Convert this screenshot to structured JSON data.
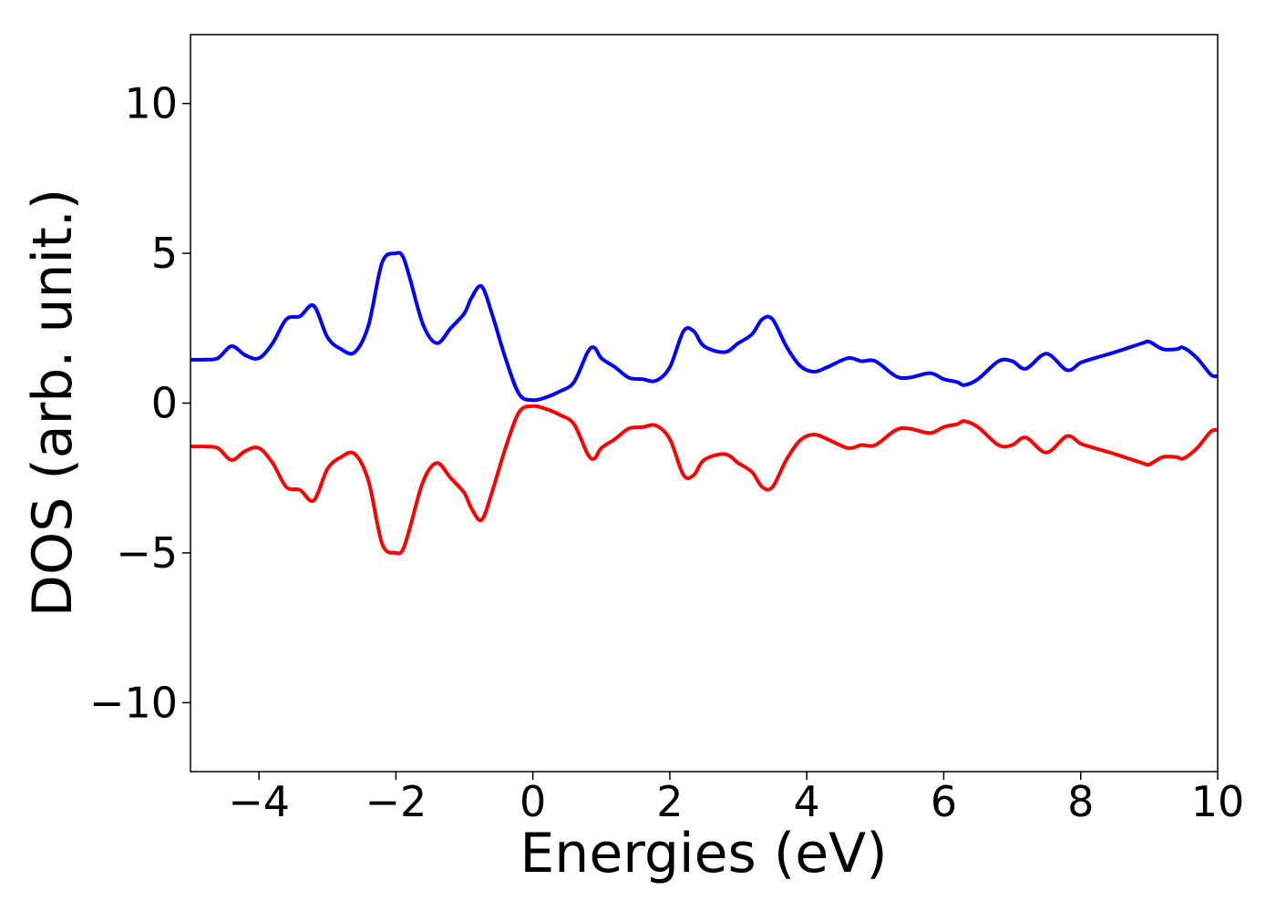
{
  "chart_data": {
    "type": "line",
    "title": "",
    "xlabel": "Energies (eV)",
    "ylabel": "DOS (arb. unit.)",
    "xlim": [
      -5,
      10
    ],
    "ylim": [
      -12.3,
      12.3
    ],
    "xticks": [
      -4,
      -2,
      0,
      2,
      4,
      6,
      8,
      10
    ],
    "xtick_labels": [
      "−4",
      "−2",
      "0",
      "2",
      "4",
      "6",
      "8",
      "10"
    ],
    "yticks": [
      10,
      5,
      0,
      -5,
      -10
    ],
    "ytick_labels": [
      "10",
      "5",
      "0",
      "−5",
      "−10"
    ],
    "grid": false,
    "legend": "none",
    "series": [
      {
        "color": "#0000ff",
        "x": [
          -5,
          -4.8,
          -4.6,
          -4.4,
          -4.2,
          -4.0,
          -3.8,
          -3.6,
          -3.4,
          -3.2,
          -3.0,
          -2.8,
          -2.6,
          -2.4,
          -2.2,
          -2.0,
          -1.9,
          -1.8,
          -1.6,
          -1.4,
          -1.2,
          -1.0,
          -0.9,
          -0.75,
          -0.6,
          -0.4,
          -0.2,
          0.0,
          0.2,
          0.4,
          0.6,
          0.8,
          0.9,
          1.0,
          1.2,
          1.4,
          1.6,
          1.8,
          2.0,
          2.2,
          2.35,
          2.5,
          2.8,
          3.0,
          3.2,
          3.35,
          3.5,
          3.7,
          3.9,
          4.1,
          4.3,
          4.6,
          4.8,
          5.0,
          5.3,
          5.5,
          5.8,
          6.0,
          6.2,
          6.3,
          6.5,
          6.8,
          7.0,
          7.2,
          7.5,
          7.8,
          8.0,
          8.2,
          8.5,
          8.9,
          9.0,
          9.2,
          9.4,
          9.5,
          9.7,
          9.9,
          10.0
        ],
        "y": [
          1.45,
          1.45,
          1.5,
          1.9,
          1.6,
          1.5,
          2.0,
          2.8,
          2.9,
          3.25,
          2.2,
          1.8,
          1.7,
          2.6,
          4.7,
          5.0,
          4.9,
          4.2,
          2.6,
          2.0,
          2.5,
          3.0,
          3.5,
          3.9,
          3.0,
          1.5,
          0.3,
          0.1,
          0.2,
          0.4,
          0.7,
          1.7,
          1.85,
          1.5,
          1.2,
          0.85,
          0.8,
          0.75,
          1.2,
          2.4,
          2.4,
          1.9,
          1.7,
          2.0,
          2.3,
          2.8,
          2.8,
          1.9,
          1.25,
          1.05,
          1.2,
          1.5,
          1.4,
          1.4,
          0.9,
          0.85,
          1.0,
          0.8,
          0.7,
          0.6,
          0.8,
          1.4,
          1.4,
          1.15,
          1.65,
          1.1,
          1.35,
          1.5,
          1.7,
          2.0,
          2.05,
          1.8,
          1.8,
          1.85,
          1.5,
          0.95,
          0.9
        ]
      },
      {
        "color": "#ff0000",
        "x": [
          -5,
          -4.8,
          -4.6,
          -4.4,
          -4.2,
          -4.0,
          -3.8,
          -3.6,
          -3.4,
          -3.2,
          -3.0,
          -2.8,
          -2.6,
          -2.4,
          -2.2,
          -2.0,
          -1.9,
          -1.8,
          -1.6,
          -1.4,
          -1.2,
          -1.0,
          -0.9,
          -0.75,
          -0.6,
          -0.4,
          -0.2,
          0.0,
          0.2,
          0.4,
          0.6,
          0.8,
          0.9,
          1.0,
          1.2,
          1.4,
          1.6,
          1.8,
          2.0,
          2.2,
          2.35,
          2.5,
          2.8,
          3.0,
          3.2,
          3.35,
          3.5,
          3.7,
          3.9,
          4.1,
          4.3,
          4.6,
          4.8,
          5.0,
          5.3,
          5.5,
          5.8,
          6.0,
          6.2,
          6.3,
          6.5,
          6.8,
          7.0,
          7.2,
          7.5,
          7.8,
          8.0,
          8.2,
          8.5,
          8.9,
          9.0,
          9.2,
          9.4,
          9.5,
          9.7,
          9.9,
          10.0
        ],
        "y": [
          -1.45,
          -1.45,
          -1.5,
          -1.9,
          -1.6,
          -1.5,
          -2.0,
          -2.8,
          -2.9,
          -3.25,
          -2.2,
          -1.8,
          -1.7,
          -2.6,
          -4.7,
          -5.0,
          -4.9,
          -4.2,
          -2.6,
          -2.0,
          -2.5,
          -3.0,
          -3.5,
          -3.9,
          -3.0,
          -1.5,
          -0.3,
          -0.1,
          -0.2,
          -0.4,
          -0.7,
          -1.7,
          -1.85,
          -1.5,
          -1.2,
          -0.85,
          -0.8,
          -0.75,
          -1.2,
          -2.4,
          -2.4,
          -1.9,
          -1.7,
          -2.0,
          -2.3,
          -2.8,
          -2.8,
          -1.9,
          -1.25,
          -1.05,
          -1.2,
          -1.5,
          -1.4,
          -1.4,
          -0.9,
          -0.85,
          -1.0,
          -0.8,
          -0.7,
          -0.6,
          -0.8,
          -1.4,
          -1.4,
          -1.15,
          -1.65,
          -1.1,
          -1.35,
          -1.5,
          -1.7,
          -2.0,
          -2.05,
          -1.8,
          -1.8,
          -1.85,
          -1.5,
          -0.95,
          -0.9
        ]
      }
    ]
  }
}
